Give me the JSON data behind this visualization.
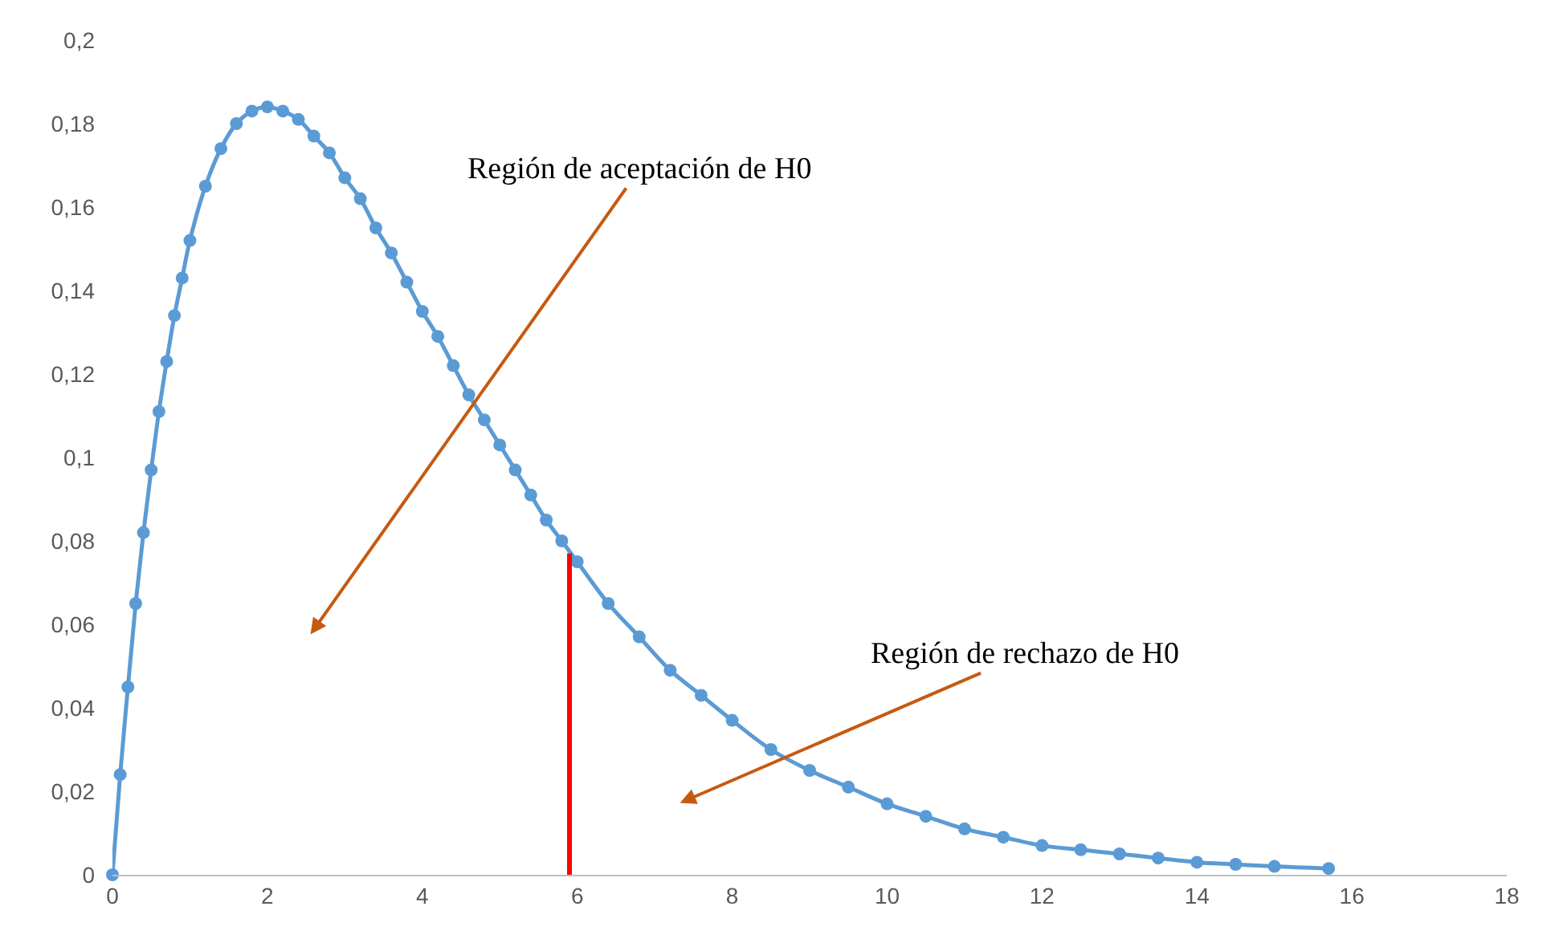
{
  "chart_data": {
    "type": "line",
    "marker": "circle",
    "line_style": "solid",
    "xlim": [
      0,
      18
    ],
    "xticks": [
      0,
      2,
      4,
      6,
      8,
      10,
      12,
      14,
      16,
      18
    ],
    "ylim": [
      0,
      0.2
    ],
    "yticks": [
      {
        "value": 0,
        "label": "0"
      },
      {
        "value": 0.02,
        "label": "0,02"
      },
      {
        "value": 0.04,
        "label": "0,04"
      },
      {
        "value": 0.06,
        "label": "0,06"
      },
      {
        "value": 0.08,
        "label": "0,08"
      },
      {
        "value": 0.1,
        "label": "0,1"
      },
      {
        "value": 0.12,
        "label": "0,12"
      },
      {
        "value": 0.14,
        "label": "0,14"
      },
      {
        "value": 0.16,
        "label": "0,16"
      },
      {
        "value": 0.18,
        "label": "0,18"
      },
      {
        "value": 0.2,
        "label": "0,2"
      }
    ],
    "series": [
      {
        "color": "#5b9bd5",
        "x": [
          0,
          0.1,
          0.2,
          0.3,
          0.4,
          0.5,
          0.6,
          0.7,
          0.8,
          0.9,
          1.0,
          1.2,
          1.4,
          1.6,
          1.8,
          2.0,
          2.2,
          2.4,
          2.6,
          2.8,
          3.0,
          3.2,
          3.4,
          3.6,
          3.8,
          4.0,
          4.2,
          4.4,
          4.6,
          4.8,
          5.0,
          5.2,
          5.4,
          5.6,
          5.8,
          6.0,
          6.4,
          6.8,
          7.2,
          7.6,
          8.0,
          8.5,
          9.0,
          9.5,
          10,
          10.5,
          11,
          11.5,
          12,
          12.5,
          13,
          13.5,
          14,
          14.5,
          15,
          15.7
        ],
        "values": [
          0,
          0.024,
          0.045,
          0.065,
          0.082,
          0.097,
          0.111,
          0.123,
          0.134,
          0.143,
          0.152,
          0.165,
          0.174,
          0.18,
          0.183,
          0.184,
          0.183,
          0.181,
          0.177,
          0.173,
          0.167,
          0.162,
          0.155,
          0.149,
          0.142,
          0.135,
          0.129,
          0.122,
          0.115,
          0.109,
          0.103,
          0.097,
          0.091,
          0.085,
          0.08,
          0.075,
          0.065,
          0.057,
          0.049,
          0.043,
          0.037,
          0.03,
          0.025,
          0.021,
          0.017,
          0.014,
          0.011,
          0.009,
          0.007,
          0.006,
          0.005,
          0.004,
          0.003,
          0.0025,
          0.002,
          0.0015
        ]
      },
      {
        "type": "line",
        "marker": "none",
        "color": "#ff0000",
        "x": [
          5.9,
          5.9
        ],
        "values": [
          0,
          0.077
        ]
      }
    ],
    "annotations": [
      "Región de aceptación de H0",
      "Región de rechazo de H0"
    ]
  }
}
